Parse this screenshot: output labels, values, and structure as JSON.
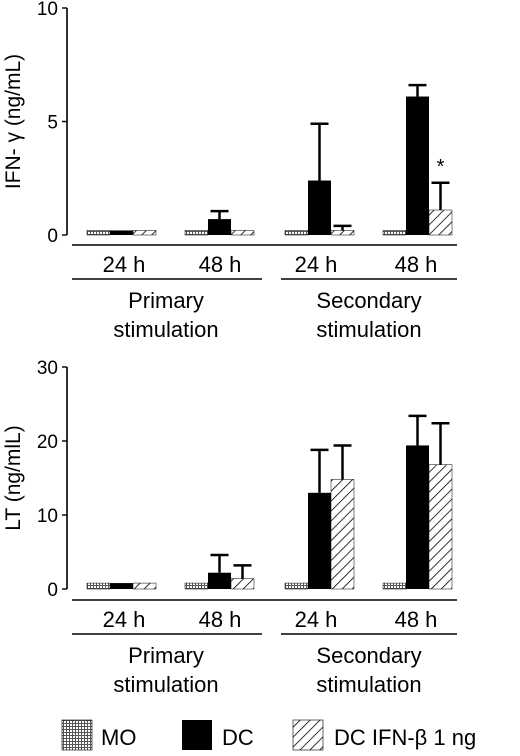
{
  "chart_data": [
    {
      "type": "bar",
      "ylabel": "IFN- γ (ng/mL)",
      "ylim": [
        0,
        10
      ],
      "yticks": [
        0,
        5,
        10
      ],
      "categories": [
        "24 h",
        "48 h",
        "24 h",
        "48 h"
      ],
      "groups": [
        {
          "label": "Primary stimulation",
          "lines": [
            "Primary",
            "stimulation"
          ]
        },
        {
          "label": "Secondary stimulation",
          "lines": [
            "Secondary",
            "stimulation"
          ]
        }
      ],
      "series": [
        {
          "name": "MO",
          "values": [
            0.2,
            0.2,
            0.2,
            0.2
          ],
          "errors": [
            0,
            0,
            0,
            0
          ]
        },
        {
          "name": "DC",
          "values": [
            0.2,
            0.7,
            2.4,
            6.1
          ],
          "errors": [
            0,
            0.35,
            2.5,
            0.5
          ]
        },
        {
          "name": "DC IFN-β 1 ng",
          "values": [
            0.2,
            0.2,
            0.2,
            1.1
          ],
          "errors": [
            0,
            0,
            0.2,
            1.2
          ]
        }
      ],
      "annotations": [
        {
          "text": "*",
          "category_index": 3,
          "series_index": 2
        }
      ]
    },
    {
      "type": "bar",
      "ylabel": "LT (ng/mlL)",
      "ylim": [
        0,
        30
      ],
      "yticks": [
        0,
        10,
        20,
        30
      ],
      "categories": [
        "24 h",
        "48 h",
        "24 h",
        "48 h"
      ],
      "groups": [
        {
          "label": "Primary stimulation",
          "lines": [
            "Primary",
            "stimulation"
          ]
        },
        {
          "label": "Secondary stimulation",
          "lines": [
            "Secondary",
            "stimulation"
          ]
        }
      ],
      "series": [
        {
          "name": "MO",
          "values": [
            0.8,
            0.8,
            0.8,
            0.8
          ],
          "errors": [
            0,
            0,
            0,
            0
          ]
        },
        {
          "name": "DC",
          "values": [
            0.8,
            2.2,
            13.0,
            19.4
          ],
          "errors": [
            0,
            2.4,
            5.8,
            4.0
          ]
        },
        {
          "name": "DC IFN-β 1 ng",
          "values": [
            0.8,
            1.4,
            14.8,
            16.8
          ],
          "errors": [
            0,
            1.8,
            4.6,
            5.6
          ]
        }
      ],
      "annotations": []
    }
  ],
  "legend": {
    "position": "bottom",
    "items": [
      {
        "label": "MO",
        "series": "MO"
      },
      {
        "label": "DC",
        "series": "DC"
      },
      {
        "label": "DC IFN-β 1 ng",
        "series": "DC IFN-β 1 ng"
      }
    ]
  },
  "colors": {
    "dc": "#000000",
    "axis": "#000000",
    "background": "#ffffff"
  }
}
